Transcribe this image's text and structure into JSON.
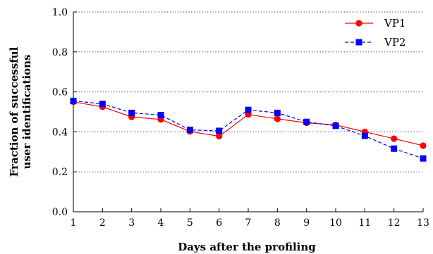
{
  "chart_data": {
    "type": "line",
    "xlabel": "Days after the profiling",
    "ylabel": [
      "Fraction of successful",
      "user identifications"
    ],
    "x": [
      1,
      2,
      3,
      4,
      5,
      6,
      7,
      8,
      9,
      10,
      11,
      12,
      13
    ],
    "xlim": [
      1,
      13
    ],
    "ylim": [
      0.0,
      1.0
    ],
    "xticks": [
      "1",
      "2",
      "3",
      "4",
      "5",
      "6",
      "7",
      "8",
      "9",
      "10",
      "11",
      "12",
      "13"
    ],
    "yticks": [
      "0.0",
      "0.2",
      "0.4",
      "0.6",
      "0.8",
      "1.0"
    ],
    "grid": "horizontal-dotted",
    "legend_position": "top-right",
    "series": [
      {
        "name": "VP1",
        "color": "#ff0000",
        "marker": "circle",
        "line": "solid",
        "values": [
          0.55,
          0.525,
          0.475,
          0.462,
          0.402,
          0.378,
          0.487,
          0.465,
          0.445,
          0.435,
          0.4,
          0.366,
          0.331
        ]
      },
      {
        "name": "VP2",
        "color": "#0000ff",
        "marker": "square",
        "line": "dashed",
        "values": [
          0.555,
          0.54,
          0.495,
          0.484,
          0.41,
          0.405,
          0.51,
          0.495,
          0.45,
          0.43,
          0.38,
          0.316,
          0.267
        ]
      }
    ]
  }
}
